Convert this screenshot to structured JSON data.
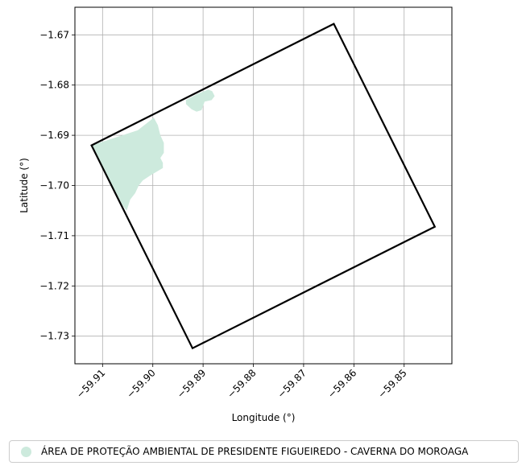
{
  "chart_data": {
    "type": "map",
    "xlabel": "Longitude (°)",
    "ylabel": "Latitude (°)",
    "xlim": [
      -59.9155,
      -59.8405
    ],
    "ylim": [
      -1.7355,
      -1.6645
    ],
    "x_ticks": [
      {
        "value": -59.91,
        "label": "−59.91"
      },
      {
        "value": -59.9,
        "label": "−59.90"
      },
      {
        "value": -59.89,
        "label": "−59.89"
      },
      {
        "value": -59.88,
        "label": "−59.88"
      },
      {
        "value": -59.87,
        "label": "−59.87"
      },
      {
        "value": -59.86,
        "label": "−59.86"
      },
      {
        "value": -59.85,
        "label": "−59.85"
      }
    ],
    "y_ticks": [
      {
        "value": -1.67,
        "label": "−1.67"
      },
      {
        "value": -1.68,
        "label": "−1.68"
      },
      {
        "value": -1.69,
        "label": "−1.69"
      },
      {
        "value": -1.7,
        "label": "−1.70"
      },
      {
        "value": -1.71,
        "label": "−1.71"
      },
      {
        "value": -1.72,
        "label": "−1.72"
      },
      {
        "value": -1.73,
        "label": "−1.73"
      }
    ],
    "grid": true,
    "boundary": {
      "color": "#000000",
      "points": [
        [
          -59.9122,
          -1.692
        ],
        [
          -59.864,
          -1.6678
        ],
        [
          -59.8439,
          -1.7082
        ],
        [
          -59.8921,
          -1.7324
        ]
      ]
    },
    "protected_areas": {
      "color": "#cdeadd",
      "polygons": [
        [
          [
            -59.9122,
            -1.692
          ],
          [
            -59.903,
            -1.689
          ],
          [
            -59.8998,
            -1.6865
          ],
          [
            -59.899,
            -1.688
          ],
          [
            -59.8985,
            -1.69
          ],
          [
            -59.8978,
            -1.6915
          ],
          [
            -59.8978,
            -1.6935
          ],
          [
            -59.8985,
            -1.6945
          ],
          [
            -59.898,
            -1.6955
          ],
          [
            -59.898,
            -1.6965
          ],
          [
            -59.9005,
            -1.698
          ],
          [
            -59.902,
            -1.699
          ],
          [
            -59.9028,
            -1.7
          ],
          [
            -59.9035,
            -1.7015
          ],
          [
            -59.9045,
            -1.7028
          ],
          [
            -59.9052,
            -1.705
          ],
          [
            -59.906,
            -1.704
          ],
          [
            -59.9122,
            -1.692
          ]
        ],
        [
          [
            -59.8934,
            -1.683
          ],
          [
            -59.8912,
            -1.6818
          ],
          [
            -59.889,
            -1.6809
          ],
          [
            -59.8882,
            -1.6812
          ],
          [
            -59.8877,
            -1.6822
          ],
          [
            -59.8883,
            -1.683
          ],
          [
            -59.8897,
            -1.6833
          ],
          [
            -59.8903,
            -1.685
          ],
          [
            -59.8913,
            -1.6853
          ],
          [
            -59.8923,
            -1.6848
          ],
          [
            -59.8934,
            -1.6838
          ],
          [
            -59.8934,
            -1.683
          ]
        ]
      ]
    },
    "legend": {
      "position": "bottom-center",
      "entries": [
        {
          "label": "ÁREA DE PROTEÇÃO AMBIENTAL DE PRESIDENTE FIGUEIREDO - CAVERNA DO MOROAGA",
          "color": "#cdeadd"
        }
      ]
    }
  }
}
